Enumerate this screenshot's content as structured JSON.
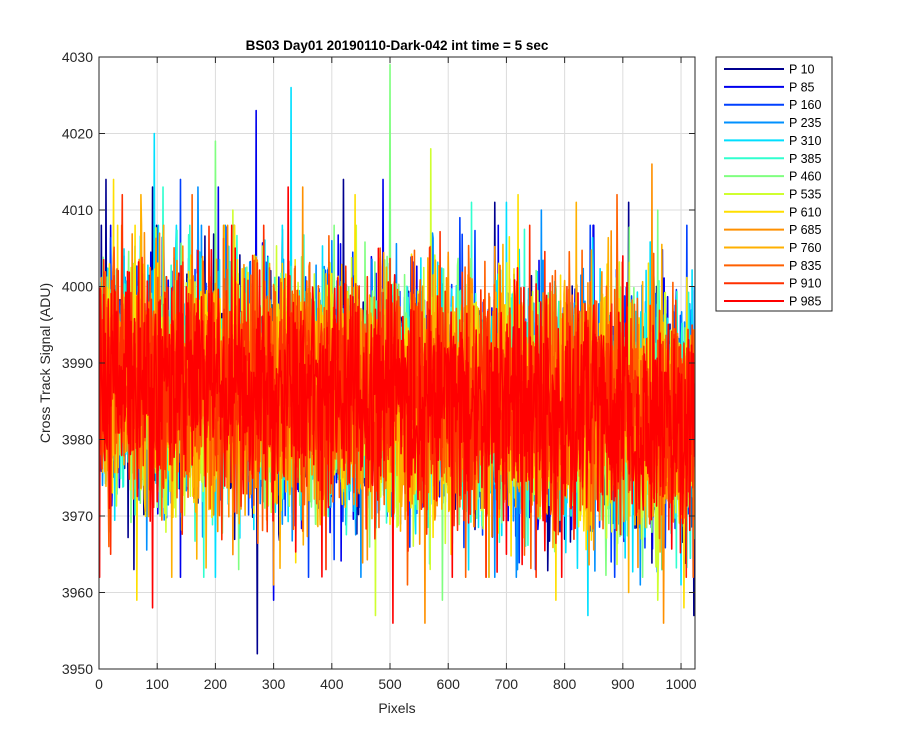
{
  "chart_data": {
    "type": "line",
    "title": "BS03 Day01 20190110-Dark-042 int time = 5 sec",
    "xlabel": "Pixels",
    "ylabel": "Cross Track Signal (ADU)",
    "xlim": [
      0,
      1024
    ],
    "ylim": [
      3950,
      4030
    ],
    "xticks": [
      0,
      100,
      200,
      300,
      400,
      500,
      600,
      700,
      800,
      900,
      1000
    ],
    "yticks": [
      3950,
      3960,
      3970,
      3980,
      3990,
      4000,
      4010,
      4020,
      4030
    ],
    "grid": true,
    "legend_position": "outside-top-right",
    "noise_model": {
      "mean_start": 3988,
      "mean_end": 3983,
      "std": 7.5,
      "points_per_series": 1024
    },
    "series": [
      {
        "name": "P 10",
        "color": "#00008F",
        "peaks": [
          {
            "x": 12,
            "y": 4014
          },
          {
            "x": 92,
            "y": 4013
          },
          {
            "x": 420,
            "y": 4014
          },
          {
            "x": 680,
            "y": 4011
          },
          {
            "x": 910,
            "y": 4011
          }
        ],
        "troughs": [
          {
            "x": 272,
            "y": 3952
          },
          {
            "x": 60,
            "y": 3963
          },
          {
            "x": 1022,
            "y": 3957
          }
        ]
      },
      {
        "name": "P 85",
        "color": "#0000EE",
        "peaks": [
          {
            "x": 270,
            "y": 4023
          },
          {
            "x": 205,
            "y": 4013
          },
          {
            "x": 488,
            "y": 4014
          },
          {
            "x": 850,
            "y": 4008
          }
        ],
        "troughs": [
          {
            "x": 300,
            "y": 3959
          },
          {
            "x": 140,
            "y": 3962
          },
          {
            "x": 750,
            "y": 3963
          }
        ]
      },
      {
        "name": "P 160",
        "color": "#0040FF",
        "peaks": [
          {
            "x": 140,
            "y": 4014
          },
          {
            "x": 620,
            "y": 4009
          },
          {
            "x": 1010,
            "y": 4008
          }
        ],
        "troughs": [
          {
            "x": 360,
            "y": 3962
          },
          {
            "x": 880,
            "y": 3964
          }
        ]
      },
      {
        "name": "P 235",
        "color": "#0090FF",
        "peaks": [
          {
            "x": 170,
            "y": 4013
          },
          {
            "x": 760,
            "y": 4010
          }
        ],
        "troughs": [
          {
            "x": 450,
            "y": 3962
          },
          {
            "x": 930,
            "y": 3961
          }
        ]
      },
      {
        "name": "P 310",
        "color": "#00DFFF",
        "peaks": [
          {
            "x": 95,
            "y": 4020
          },
          {
            "x": 330,
            "y": 4026
          },
          {
            "x": 700,
            "y": 4011
          }
        ],
        "troughs": [
          {
            "x": 200,
            "y": 3962
          },
          {
            "x": 840,
            "y": 3957
          },
          {
            "x": 1000,
            "y": 3961
          }
        ]
      },
      {
        "name": "P 385",
        "color": "#30FFCF",
        "peaks": [
          {
            "x": 110,
            "y": 4013
          },
          {
            "x": 640,
            "y": 4011
          }
        ],
        "troughs": [
          {
            "x": 180,
            "y": 3962
          },
          {
            "x": 670,
            "y": 3962
          }
        ]
      },
      {
        "name": "P 460",
        "color": "#80FF80",
        "peaks": [
          {
            "x": 200,
            "y": 4019
          },
          {
            "x": 500,
            "y": 4029
          },
          {
            "x": 960,
            "y": 4010
          }
        ],
        "troughs": [
          {
            "x": 240,
            "y": 3963
          },
          {
            "x": 590,
            "y": 3959
          }
        ]
      },
      {
        "name": "P 535",
        "color": "#CFFF30",
        "peaks": [
          {
            "x": 570,
            "y": 4018
          },
          {
            "x": 230,
            "y": 4010
          }
        ],
        "troughs": [
          {
            "x": 475,
            "y": 3957
          },
          {
            "x": 960,
            "y": 3959
          }
        ]
      },
      {
        "name": "P 610",
        "color": "#FFDF00",
        "peaks": [
          {
            "x": 25,
            "y": 4014
          },
          {
            "x": 440,
            "y": 4012
          },
          {
            "x": 720,
            "y": 4012
          }
        ],
        "troughs": [
          {
            "x": 65,
            "y": 3959
          },
          {
            "x": 785,
            "y": 3959
          },
          {
            "x": 1005,
            "y": 3958
          }
        ]
      },
      {
        "name": "P 685",
        "color": "#FF9000",
        "peaks": [
          {
            "x": 350,
            "y": 4013
          },
          {
            "x": 950,
            "y": 4016
          }
        ],
        "troughs": [
          {
            "x": 300,
            "y": 3961
          },
          {
            "x": 560,
            "y": 3956
          },
          {
            "x": 970,
            "y": 3956
          }
        ]
      },
      {
        "name": "P 760",
        "color": "#FFB000",
        "peaks": [
          {
            "x": 72,
            "y": 4012
          },
          {
            "x": 820,
            "y": 4011
          }
        ],
        "troughs": [
          {
            "x": 125,
            "y": 3962
          },
          {
            "x": 910,
            "y": 3960
          }
        ]
      },
      {
        "name": "P 835",
        "color": "#FF6000",
        "peaks": [
          {
            "x": 160,
            "y": 4012
          },
          {
            "x": 890,
            "y": 4012
          }
        ],
        "troughs": [
          {
            "x": 530,
            "y": 3961
          },
          {
            "x": 630,
            "y": 3962
          }
        ]
      },
      {
        "name": "P 910",
        "color": "#FF3000",
        "peaks": [
          {
            "x": 40,
            "y": 4012
          },
          {
            "x": 740,
            "y": 4008
          }
        ],
        "troughs": [
          {
            "x": 20,
            "y": 3965
          },
          {
            "x": 390,
            "y": 3963
          }
        ]
      },
      {
        "name": "P 985",
        "color": "#FF0000",
        "peaks": [
          {
            "x": 325,
            "y": 4013
          },
          {
            "x": 480,
            "y": 4005
          },
          {
            "x": 900,
            "y": 4004
          }
        ],
        "troughs": [
          {
            "x": 92,
            "y": 3958
          },
          {
            "x": 505,
            "y": 3956
          },
          {
            "x": 700,
            "y": 3965
          }
        ]
      }
    ]
  }
}
